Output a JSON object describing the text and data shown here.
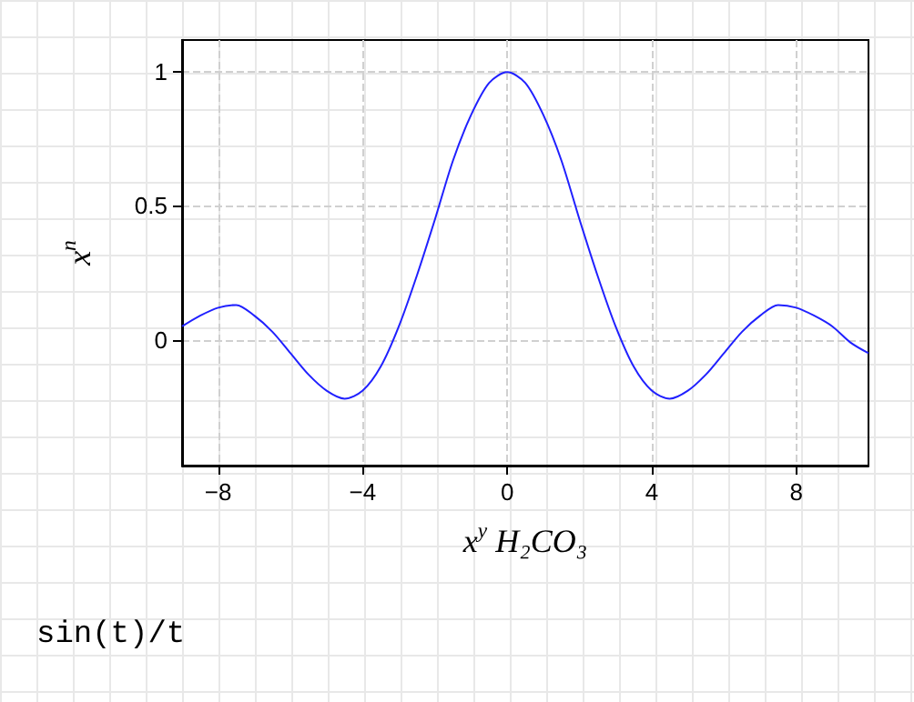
{
  "chart_data": {
    "type": "line",
    "xlabel": "x$^{y}$ H₂CO₃",
    "ylabel": "x$^{n}$",
    "annotations": [
      "sin(t)/t"
    ],
    "x": [
      -9,
      -8.5,
      -8,
      -7.5,
      -7,
      -6.5,
      -6,
      -5.5,
      -5,
      -4.5,
      -4,
      -3.5,
      -3,
      -2.5,
      -2,
      -1.5,
      -1,
      -0.5,
      0,
      0.5,
      1,
      1.5,
      2,
      2.5,
      3,
      3.5,
      4,
      4.5,
      5,
      5.5,
      6,
      6.5,
      7,
      7.5,
      8,
      8.5,
      9,
      9.5,
      10
    ],
    "series": [
      {
        "color": "#2020ff",
        "values": [
          0.05,
          0.09,
          0.12,
          0.13,
          0.09,
          0.03,
          -0.05,
          -0.13,
          -0.19,
          -0.22,
          -0.19,
          -0.1,
          0.05,
          0.24,
          0.45,
          0.67,
          0.84,
          0.96,
          1,
          0.96,
          0.84,
          0.67,
          0.45,
          0.24,
          0.05,
          -0.1,
          -0.19,
          -0.22,
          -0.19,
          -0.13,
          -0.05,
          0.03,
          0.09,
          0.13,
          0.12,
          0.09,
          0.05,
          -0.01,
          -0.05
        ]
      }
    ],
    "xlim": [
      -9,
      10
    ],
    "ylim": [
      -0.47,
      1.12
    ],
    "xticks": [
      -8,
      -4,
      0,
      4,
      8
    ],
    "yticks": [
      0,
      0.5,
      1
    ],
    "grid": true,
    "marker": "none",
    "line_style": "solid"
  }
}
